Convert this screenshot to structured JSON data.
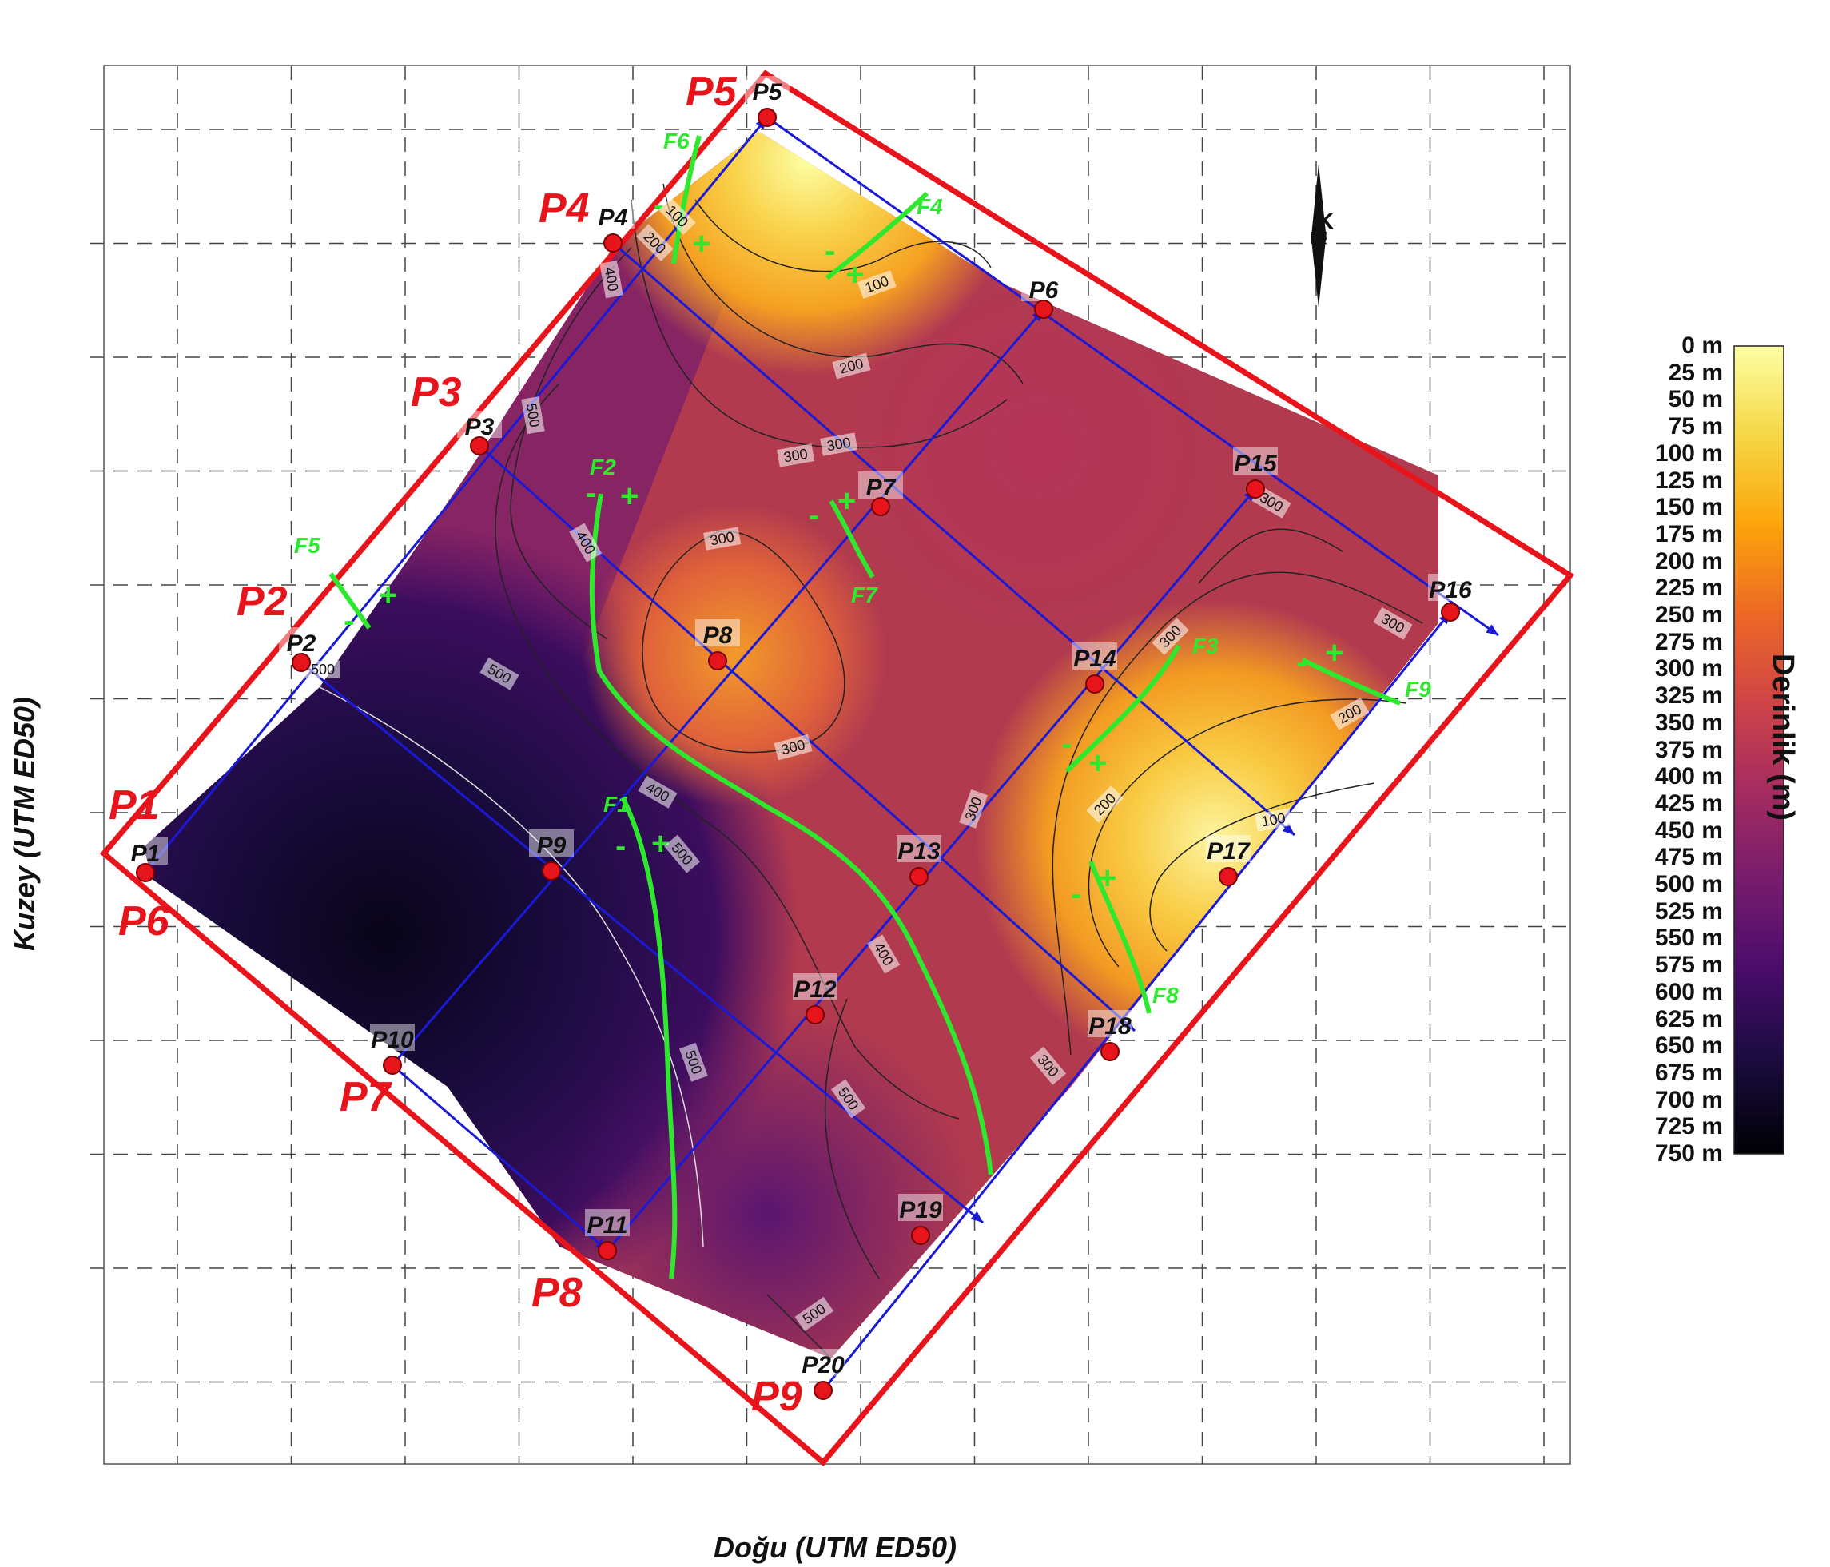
{
  "map": {
    "x_axis_title": "Doğu (UTM ED50)",
    "y_axis_title": "Kuzey (UTM ED50)",
    "north_arrow_label": "K",
    "colors": {
      "study_area_outline": "#e8141b",
      "profile_lines": "#1a1ad6",
      "fault_lines": "#2ee82e",
      "station_marker": "#e8141b",
      "contour_lines": "#222222",
      "contour_lines_deep": "#dddddd"
    },
    "profile_labels": [
      "P1",
      "P2",
      "P3",
      "P4",
      "P5",
      "P6",
      "P7",
      "P8",
      "P9"
    ],
    "stations": [
      "P1",
      "P2",
      "P3",
      "P4",
      "P5",
      "P6",
      "P7",
      "P8",
      "P9",
      "P10",
      "P11",
      "P12",
      "P13",
      "P14",
      "P15",
      "P16",
      "P17",
      "P18",
      "P19",
      "P20"
    ],
    "faults": [
      "F1",
      "F2",
      "F3",
      "F4",
      "F5",
      "F6",
      "F7",
      "F8",
      "F9"
    ],
    "fault_sign_symbols": [
      "-",
      "+"
    ],
    "contour_labels": [
      "100",
      "200",
      "300",
      "400",
      "500"
    ]
  },
  "colorbar": {
    "title": "Derinlik (m)",
    "colormap": "inferno",
    "range_m": [
      0,
      750
    ],
    "ticks": [
      "0 m",
      "25 m",
      "50 m",
      "75 m",
      "100 m",
      "125 m",
      "150 m",
      "175 m",
      "200 m",
      "225 m",
      "250 m",
      "275 m",
      "300 m",
      "325 m",
      "350 m",
      "375 m",
      "400 m",
      "425 m",
      "450 m",
      "475 m",
      "500 m",
      "525 m",
      "550 m",
      "575 m",
      "600 m",
      "625 m",
      "650 m",
      "675 m",
      "700 m",
      "725 m",
      "750 m"
    ],
    "colors": [
      "#fcffa4",
      "#f6d746",
      "#fca50a",
      "#ed6925",
      "#cf4446",
      "#a52c60",
      "#781c6d",
      "#4a0c6b",
      "#1b0c41",
      "#000004"
    ]
  }
}
